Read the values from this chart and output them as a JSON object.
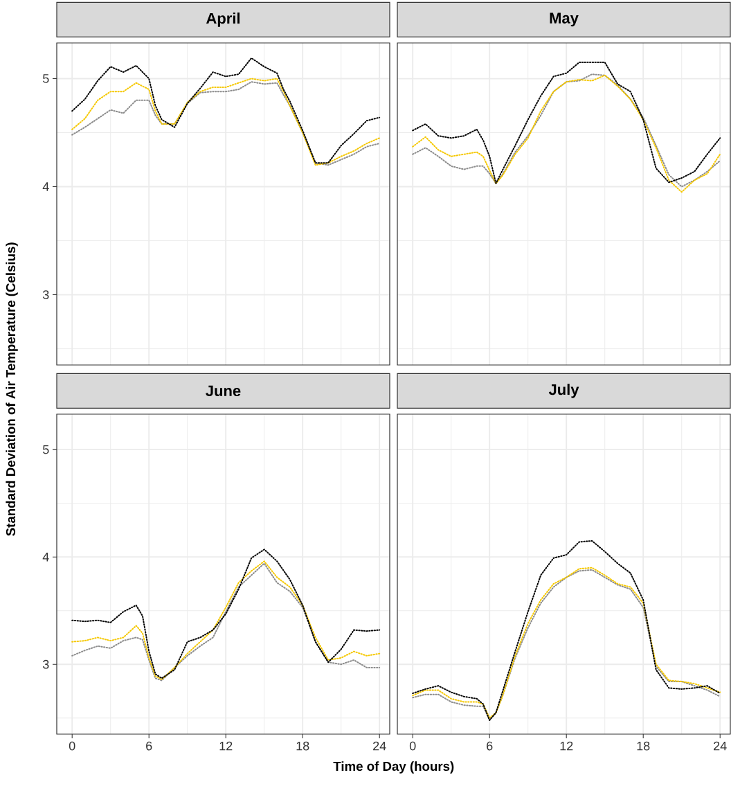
{
  "chart_data": [
    {
      "type": "line",
      "title": "April",
      "ylabel": "Standard Deviation of Air Temperature (Celsius)",
      "line_style": "dotted",
      "grid": true,
      "tick_labels": "y",
      "x": [
        0,
        1,
        2,
        3,
        4,
        5,
        6,
        6.5,
        7,
        8,
        9,
        10,
        11,
        12,
        13,
        14,
        15,
        16,
        16.5,
        17,
        18,
        19,
        20,
        21,
        22,
        23,
        24
      ],
      "xlim": [
        -1.2,
        24.8
      ],
      "xticks": [
        0,
        {
          "value": 3,
          "label": null
        },
        6,
        {
          "value": 9,
          "label": null
        },
        12,
        {
          "value": 15,
          "label": null
        },
        18,
        {
          "value": 21,
          "label": null
        },
        24
      ],
      "ylim": [
        2.35,
        5.33
      ],
      "yticks": [
        {
          "value": 2.5,
          "label": null
        },
        3,
        {
          "value": 3.5,
          "label": null
        },
        4,
        {
          "value": 4.5,
          "label": null
        },
        5
      ],
      "series": [
        {
          "color": "#000000",
          "values": [
            4.7,
            4.81,
            4.98,
            5.11,
            5.06,
            5.12,
            5.0,
            4.75,
            4.62,
            4.55,
            4.77,
            4.91,
            5.06,
            5.02,
            5.04,
            5.19,
            5.11,
            5.05,
            4.9,
            4.79,
            4.52,
            4.22,
            4.22,
            4.38,
            4.49,
            4.61,
            4.64
          ]
        },
        {
          "color": "#f5c800",
          "values": [
            4.53,
            4.63,
            4.8,
            4.88,
            4.88,
            4.96,
            4.9,
            4.7,
            4.58,
            4.58,
            4.78,
            4.88,
            4.92,
            4.92,
            4.96,
            5.0,
            4.98,
            5.0,
            4.88,
            4.75,
            4.5,
            4.2,
            4.22,
            4.28,
            4.33,
            4.4,
            4.45
          ]
        },
        {
          "color": "#8c8c8c",
          "values": [
            4.48,
            4.55,
            4.63,
            4.71,
            4.68,
            4.8,
            4.8,
            4.66,
            4.58,
            4.58,
            4.77,
            4.87,
            4.88,
            4.88,
            4.9,
            4.97,
            4.95,
            4.96,
            4.85,
            4.75,
            4.5,
            4.22,
            4.2,
            4.25,
            4.3,
            4.37,
            4.4
          ]
        }
      ]
    },
    {
      "type": "line",
      "title": "May",
      "line_style": "dotted",
      "grid": true,
      "tick_labels": false,
      "x": [
        0,
        1,
        2,
        3,
        4,
        5,
        5.5,
        6,
        6.5,
        7,
        8,
        9,
        10,
        11,
        12,
        13,
        14,
        15,
        16,
        17,
        18,
        19,
        20,
        21,
        22,
        23,
        24
      ],
      "xlim": [
        -1.2,
        24.8
      ],
      "xticks": [
        0,
        {
          "value": 3,
          "label": null
        },
        6,
        {
          "value": 9,
          "label": null
        },
        12,
        {
          "value": 15,
          "label": null
        },
        18,
        {
          "value": 21,
          "label": null
        },
        24
      ],
      "ylim": [
        2.35,
        5.33
      ],
      "yticks": [
        {
          "value": 2.5,
          "label": null
        },
        3,
        {
          "value": 3.5,
          "label": null
        },
        4,
        {
          "value": 4.5,
          "label": null
        },
        5
      ],
      "series": [
        {
          "color": "#000000",
          "values": [
            4.52,
            4.58,
            4.47,
            4.45,
            4.47,
            4.53,
            4.43,
            4.28,
            4.03,
            4.15,
            4.38,
            4.62,
            4.84,
            5.02,
            5.05,
            5.15,
            5.15,
            5.15,
            4.95,
            4.88,
            4.62,
            4.17,
            4.04,
            4.08,
            4.14,
            4.3,
            4.45
          ]
        },
        {
          "color": "#f5c800",
          "values": [
            4.37,
            4.46,
            4.34,
            4.28,
            4.3,
            4.32,
            4.28,
            4.15,
            4.03,
            4.1,
            4.3,
            4.45,
            4.7,
            4.88,
            4.97,
            4.99,
            4.98,
            5.03,
            4.93,
            4.81,
            4.62,
            4.36,
            4.06,
            3.95,
            4.06,
            4.12,
            4.3
          ]
        },
        {
          "color": "#8c8c8c",
          "values": [
            4.3,
            4.36,
            4.28,
            4.19,
            4.16,
            4.19,
            4.19,
            4.12,
            4.03,
            4.11,
            4.32,
            4.47,
            4.66,
            4.88,
            4.97,
            4.98,
            5.04,
            5.03,
            4.94,
            4.81,
            4.64,
            4.38,
            4.11,
            4.0,
            4.06,
            4.14,
            4.24
          ]
        }
      ]
    },
    {
      "type": "line",
      "title": "June",
      "xlabel": "Time of Day (hours)",
      "line_style": "dotted",
      "grid": true,
      "x": [
        0,
        1,
        2,
        3,
        4,
        5,
        5.5,
        6,
        6.5,
        7,
        8,
        9,
        10,
        11,
        12,
        13,
        14,
        15,
        16,
        17,
        18,
        19,
        20,
        21,
        22,
        23,
        24
      ],
      "xlim": [
        -1.2,
        24.8
      ],
      "xticks": [
        0,
        {
          "value": 3,
          "label": null
        },
        6,
        {
          "value": 9,
          "label": null
        },
        12,
        {
          "value": 15,
          "label": null
        },
        18,
        {
          "value": 21,
          "label": null
        },
        24
      ],
      "ylim": [
        2.35,
        5.33
      ],
      "yticks": [
        {
          "value": 2.5,
          "label": null
        },
        3,
        {
          "value": 3.5,
          "label": null
        },
        4,
        {
          "value": 4.5,
          "label": null
        },
        5
      ],
      "series": [
        {
          "color": "#000000",
          "values": [
            3.41,
            3.4,
            3.41,
            3.39,
            3.49,
            3.55,
            3.45,
            3.12,
            2.91,
            2.87,
            2.95,
            3.21,
            3.25,
            3.32,
            3.47,
            3.7,
            3.99,
            4.07,
            3.96,
            3.79,
            3.55,
            3.21,
            3.02,
            3.14,
            3.32,
            3.31,
            3.32
          ]
        },
        {
          "color": "#f5c800",
          "values": [
            3.21,
            3.22,
            3.25,
            3.22,
            3.25,
            3.36,
            3.29,
            3.06,
            2.89,
            2.86,
            2.97,
            3.1,
            3.21,
            3.32,
            3.53,
            3.76,
            3.87,
            3.96,
            3.81,
            3.72,
            3.55,
            3.25,
            3.04,
            3.06,
            3.12,
            3.08,
            3.1
          ]
        },
        {
          "color": "#8c8c8c",
          "values": [
            3.08,
            3.13,
            3.17,
            3.15,
            3.22,
            3.25,
            3.23,
            3.04,
            2.87,
            2.85,
            2.97,
            3.08,
            3.17,
            3.25,
            3.49,
            3.72,
            3.83,
            3.94,
            3.76,
            3.68,
            3.53,
            3.21,
            3.02,
            3.0,
            3.04,
            2.97,
            2.97
          ]
        }
      ]
    },
    {
      "type": "line",
      "title": "July",
      "line_style": "dotted",
      "grid": true,
      "tick_labels": "x",
      "x": [
        0,
        1,
        2,
        3,
        4,
        5,
        5.5,
        6,
        6.5,
        7,
        8,
        9,
        10,
        11,
        12,
        13,
        14,
        15,
        16,
        17,
        18,
        19,
        20,
        21,
        22,
        23,
        24
      ],
      "xlim": [
        -1.2,
        24.8
      ],
      "xticks": [
        0,
        {
          "value": 3,
          "label": null
        },
        6,
        {
          "value": 9,
          "label": null
        },
        12,
        {
          "value": 15,
          "label": null
        },
        18,
        {
          "value": 21,
          "label": null
        },
        24
      ],
      "ylim": [
        2.35,
        5.33
      ],
      "yticks": [
        {
          "value": 2.5,
          "label": null
        },
        3,
        {
          "value": 3.5,
          "label": null
        },
        4,
        {
          "value": 4.5,
          "label": null
        },
        5
      ],
      "series": [
        {
          "color": "#000000",
          "values": [
            2.73,
            2.77,
            2.8,
            2.74,
            2.7,
            2.68,
            2.63,
            2.48,
            2.55,
            2.74,
            3.12,
            3.49,
            3.83,
            3.99,
            4.02,
            4.14,
            4.15,
            4.05,
            3.94,
            3.85,
            3.6,
            2.95,
            2.78,
            2.77,
            2.78,
            2.8,
            2.73
          ]
        },
        {
          "color": "#f5c800",
          "values": [
            2.71,
            2.76,
            2.76,
            2.68,
            2.65,
            2.65,
            2.63,
            2.5,
            2.55,
            2.7,
            3.08,
            3.38,
            3.6,
            3.75,
            3.81,
            3.89,
            3.9,
            3.83,
            3.75,
            3.72,
            3.57,
            3.0,
            2.85,
            2.84,
            2.82,
            2.78,
            2.74
          ]
        },
        {
          "color": "#8c8c8c",
          "values": [
            2.69,
            2.72,
            2.72,
            2.65,
            2.62,
            2.61,
            2.61,
            2.48,
            2.55,
            2.7,
            3.06,
            3.34,
            3.57,
            3.72,
            3.81,
            3.87,
            3.88,
            3.81,
            3.74,
            3.7,
            3.53,
            2.98,
            2.84,
            2.84,
            2.8,
            2.76,
            2.7
          ]
        }
      ]
    }
  ]
}
